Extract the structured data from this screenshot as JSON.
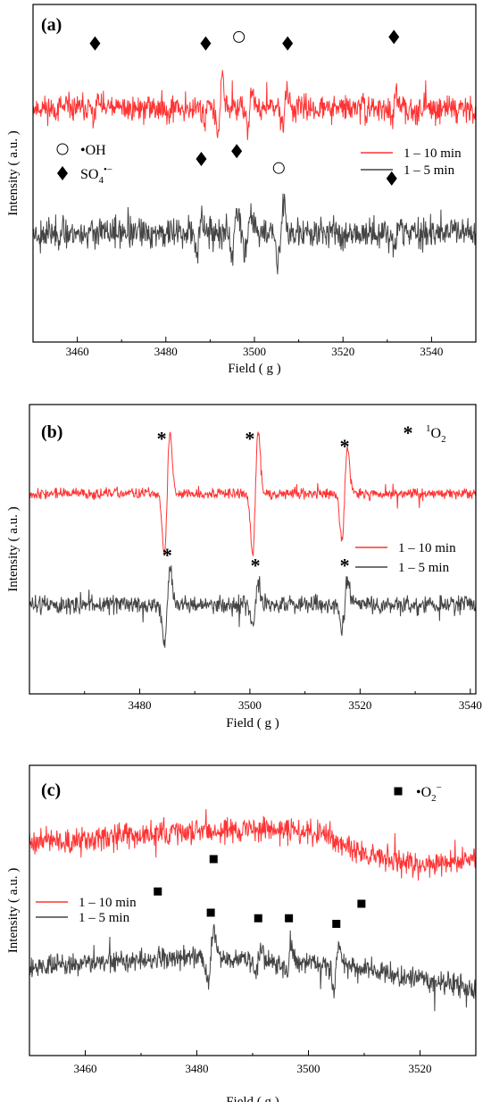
{
  "chart_data": [
    {
      "panel_label": "(a)",
      "type": "line",
      "xlabel": "Field ( g )",
      "ylabel": "Intensity ( a.u. )",
      "xlim": [
        3450,
        3550
      ],
      "xticks": [
        3460,
        3480,
        3500,
        3520,
        3540
      ],
      "series": [
        {
          "name": "1 – 10 min",
          "color": "#ff3333",
          "offset": 0.5,
          "amp": 0.062,
          "seed": 11,
          "peaks": [
            [
              3464.2,
              0.06
            ],
            [
              3489.2,
              0.08
            ],
            [
              3492.2,
              -0.22
            ],
            [
              3498.9,
              0.14
            ],
            [
              3506.9,
              0.12
            ],
            [
              3531.5,
              0.09
            ]
          ]
        },
        {
          "name": "1 – 5 min",
          "color": "#444444",
          "offset": -0.46,
          "amp": 0.072,
          "seed": 23,
          "peaks": [
            [
              3487.5,
              0.15
            ],
            [
              3495.5,
              0.2
            ],
            [
              3498.5,
              0.14
            ],
            [
              3505.5,
              0.16
            ],
            [
              3506.2,
              -0.2
            ],
            [
              3532.2,
              0.1
            ]
          ]
        }
      ],
      "legend": [
        {
          "label": "1 – 10 min",
          "color": "#ff3333"
        },
        {
          "label": "1 – 5 min",
          "color": "#444444"
        }
      ],
      "species_legend": [
        {
          "symbol": "circle",
          "label": "•OH"
        },
        {
          "symbol": "diamond",
          "label": "SO",
          "sub": "4",
          "sup": "•−"
        }
      ],
      "markers": [
        {
          "symbol": "diamond",
          "x": 3464,
          "y": 1.0
        },
        {
          "symbol": "diamond",
          "x": 3489,
          "y": 1.0
        },
        {
          "symbol": "circle",
          "x": 3496.5,
          "y": 1.05
        },
        {
          "symbol": "diamond",
          "x": 3507.5,
          "y": 1.0
        },
        {
          "symbol": "diamond",
          "x": 3531.5,
          "y": 1.05
        },
        {
          "symbol": "diamond",
          "x": 3488,
          "y": 0.11
        },
        {
          "symbol": "diamond",
          "x": 3496,
          "y": 0.17
        },
        {
          "symbol": "circle",
          "x": 3505.5,
          "y": 0.04
        },
        {
          "symbol": "diamond",
          "x": 3531,
          "y": -0.04
        }
      ]
    },
    {
      "panel_label": "(b)",
      "type": "line",
      "xlabel": "Field ( g )",
      "ylabel": "Intensity ( a.u. )",
      "xlim": [
        3460,
        3541
      ],
      "xticks": [
        3480,
        3500,
        3520,
        3540
      ],
      "series": [
        {
          "name": "1 – 10 min",
          "color": "#ff3333",
          "offset": 0.5,
          "amp": 0.03,
          "seed": 37,
          "peaks": [
            [
              3485,
              0.55
            ],
            [
              3501,
              0.55
            ],
            [
              3517.2,
              0.42
            ]
          ]
        },
        {
          "name": "1 – 5 min",
          "color": "#444444",
          "offset": -0.5,
          "amp": 0.05,
          "seed": 51,
          "peaks": [
            [
              3485,
              0.33
            ],
            [
              3501,
              0.2
            ],
            [
              3517.2,
              0.24
            ]
          ]
        }
      ],
      "legend": [
        {
          "label": "1 – 10 min",
          "color": "#ff3333"
        },
        {
          "label": "1 – 5 min",
          "color": "#444444"
        }
      ],
      "species_legend": [
        {
          "symbol": "asterisk",
          "label": "O",
          "sup_before": "1",
          "sub": "2"
        }
      ],
      "markers": [
        {
          "symbol": "asterisk",
          "x": 3484,
          "y": 1.0
        },
        {
          "symbol": "asterisk",
          "x": 3500,
          "y": 1.0
        },
        {
          "symbol": "asterisk",
          "x": 3517.2,
          "y": 0.93
        },
        {
          "symbol": "asterisk",
          "x": 3485,
          "y": -0.05
        },
        {
          "symbol": "asterisk",
          "x": 3501,
          "y": -0.14
        },
        {
          "symbol": "asterisk",
          "x": 3517.2,
          "y": -0.14
        }
      ]
    },
    {
      "panel_label": "(c)",
      "type": "line",
      "xlabel": "Field ( g )",
      "ylabel": "Intensity ( a.u. )",
      "xlim": [
        3450,
        3530
      ],
      "xticks": [
        3460,
        3480,
        3500,
        3520
      ],
      "series": [
        {
          "name": "1 – 10 min",
          "color": "#ff3333",
          "offset": 0.58,
          "amp": 0.07,
          "seed": 63,
          "baseline": [
            [
              3450,
              0.05
            ],
            [
              3465,
              0.08
            ],
            [
              3475,
              0.12
            ],
            [
              3490,
              0.16
            ],
            [
              3503,
              0.1
            ],
            [
              3510,
              -0.08
            ],
            [
              3520,
              -0.18
            ],
            [
              3530,
              -0.12
            ]
          ],
          "peaks": []
        },
        {
          "name": "1 – 5 min",
          "color": "#444444",
          "offset": -0.5,
          "amp": 0.06,
          "seed": 79,
          "baseline": [
            [
              3450,
              0.0
            ],
            [
              3480,
              0.08
            ],
            [
              3505,
              0.02
            ],
            [
              3530,
              -0.2
            ]
          ],
          "peaks": [
            [
              3482.5,
              0.25
            ],
            [
              3491,
              0.12
            ],
            [
              3496.5,
              0.12
            ],
            [
              3505,
              0.2
            ]
          ]
        }
      ],
      "legend": [
        {
          "label": "1 – 10 min",
          "color": "#ff3333"
        },
        {
          "label": "1 – 5 min",
          "color": "#444444"
        }
      ],
      "species_legend": [
        {
          "symbol": "square",
          "label": "•O",
          "sub": "2",
          "sup": "−"
        }
      ],
      "markers": [
        {
          "symbol": "square",
          "x": 3473,
          "y": 0.17
        },
        {
          "symbol": "square",
          "x": 3483,
          "y": 0.46
        },
        {
          "symbol": "square",
          "x": 3509.5,
          "y": 0.06
        },
        {
          "symbol": "square",
          "x": 3482.5,
          "y": -0.02
        },
        {
          "symbol": "square",
          "x": 3491,
          "y": -0.07
        },
        {
          "symbol": "square",
          "x": 3496.5,
          "y": -0.07
        },
        {
          "symbol": "square",
          "x": 3505,
          "y": -0.12
        }
      ]
    }
  ]
}
